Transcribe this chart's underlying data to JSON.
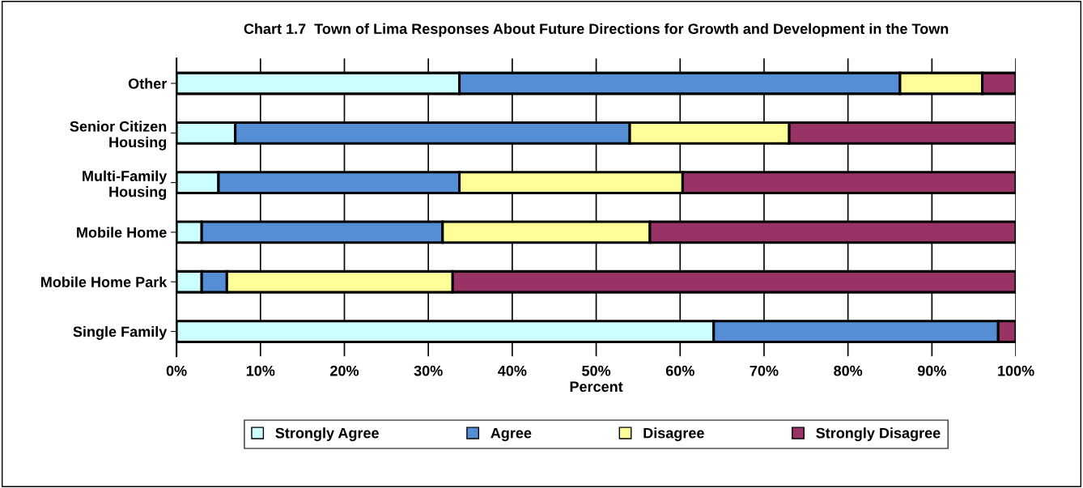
{
  "chart_data": {
    "type": "bar",
    "orientation": "horizontal",
    "stacked": true,
    "title": "Chart 1.7  Town of Lima Responses About Future Directions for Growth and Development in the Town",
    "xlabel": "Percent",
    "categories": [
      "Other",
      "Senior Citizen\nHousing",
      "Multi-Family\nHousing",
      "Mobile Home",
      "Mobile Home Park",
      "Single Family"
    ],
    "series": [
      {
        "name": "Strongly Agree",
        "color": "#ccffff",
        "values": [
          33.7,
          7.0,
          5.0,
          3.0,
          3.0,
          64.0
        ]
      },
      {
        "name": "Agree",
        "color": "#558ed5",
        "values": [
          52.5,
          47.0,
          28.7,
          28.7,
          3.0,
          33.9
        ]
      },
      {
        "name": "Disagree",
        "color": "#ffff99",
        "values": [
          9.8,
          19.0,
          26.6,
          24.7,
          26.9,
          0
        ]
      },
      {
        "name": "Strongly Disagree",
        "color": "#993366",
        "values": [
          4.0,
          27.0,
          39.7,
          43.6,
          67.1,
          2.1
        ]
      }
    ],
    "xlim": [
      0,
      100
    ],
    "xticks": [
      {
        "value": 0,
        "label": "0%"
      },
      {
        "value": 10,
        "label": "10%"
      },
      {
        "value": 20,
        "label": "20%"
      },
      {
        "value": 30,
        "label": "30%"
      },
      {
        "value": 40,
        "label": "40%"
      },
      {
        "value": 50,
        "label": "50%"
      },
      {
        "value": 60,
        "label": "60%"
      },
      {
        "value": 70,
        "label": "70%"
      },
      {
        "value": 80,
        "label": "80%"
      },
      {
        "value": 90,
        "label": "90%"
      },
      {
        "value": 100,
        "label": "100%"
      }
    ],
    "grid": "x",
    "legend": "bottom"
  }
}
